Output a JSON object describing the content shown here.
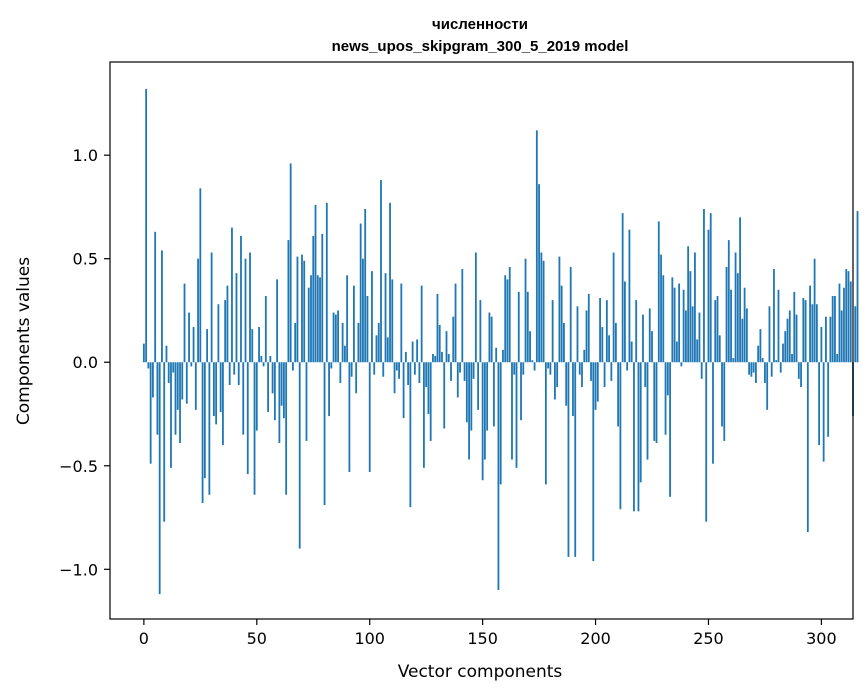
{
  "chart_data": {
    "type": "bar",
    "title_line1": "численности",
    "title_line2": "news_upos_skipgram_300_5_2019 model",
    "xlabel": "Vector components",
    "ylabel": "Components values",
    "xlim": [
      -15,
      314
    ],
    "ylim": [
      -1.24,
      1.45
    ],
    "xticks": [
      0,
      50,
      100,
      150,
      200,
      250,
      300
    ],
    "yticks": [
      -1.0,
      -0.5,
      0.0,
      0.5,
      1.0
    ],
    "xtick_labels": [
      "0",
      "50",
      "100",
      "150",
      "200",
      "250",
      "300"
    ],
    "ytick_labels": [
      "−1.0",
      "−0.5",
      "0.0",
      "0.5",
      "1.0"
    ],
    "bar_color": "#1f77b4",
    "grid": false,
    "values": [
      0.09,
      1.32,
      -0.03,
      -0.49,
      -0.17,
      0.63,
      -0.35,
      -1.12,
      0.54,
      -0.77,
      0.08,
      -0.1,
      -0.51,
      -0.05,
      -0.35,
      -0.23,
      -0.39,
      -0.18,
      0.38,
      -0.2,
      0.24,
      -0.02,
      0.17,
      -0.23,
      0.5,
      0.84,
      -0.68,
      -0.56,
      0.16,
      -0.64,
      0.53,
      -0.26,
      -0.3,
      0.28,
      -0.24,
      -0.4,
      0.3,
      0.37,
      -0.11,
      0.65,
      -0.06,
      0.43,
      -0.11,
      0.61,
      -0.35,
      0.5,
      -0.54,
      0.53,
      0.16,
      -0.64,
      -0.33,
      0.17,
      0.03,
      -0.02,
      0.32,
      -0.24,
      0.03,
      -0.15,
      -0.28,
      0.4,
      -0.39,
      -0.21,
      -0.27,
      -0.64,
      0.59,
      0.96,
      -0.04,
      0.19,
      0.51,
      -0.9,
      0.52,
      0.49,
      -0.38,
      0.36,
      0.42,
      0.61,
      0.76,
      0.42,
      0.41,
      0.62,
      -0.69,
      0.77,
      -0.26,
      -0.03,
      0.24,
      0.23,
      0.25,
      -0.1,
      0.19,
      0.08,
      0.42,
      -0.53,
      -0.07,
      0.37,
      -0.15,
      0.19,
      0.67,
      0.5,
      0.74,
      0.32,
      -0.53,
      0.44,
      -0.06,
      0.13,
      0.19,
      0.88,
      -0.07,
      0.43,
      0.12,
      0.77,
      0.4,
      -0.15,
      -0.04,
      -0.08,
      0.38,
      -0.27,
      0.05,
      -0.11,
      -0.7,
      0.1,
      -0.06,
      0.11,
      -0.1,
      0.37,
      -0.51,
      -0.12,
      -0.25,
      -0.38,
      0.04,
      0.03,
      0.33,
      0.18,
      0.05,
      -0.32,
      0.15,
      0.04,
      -0.09,
      0.22,
      0.38,
      -0.17,
      -0.05,
      0.45,
      -0.09,
      -0.29,
      -0.47,
      -0.33,
      -0.08,
      0.53,
      -0.23,
      0.3,
      -0.57,
      -0.47,
      -0.33,
      0.24,
      0.22,
      -0.31,
      0.07,
      -1.1,
      -0.59,
      0.06,
      0.42,
      0.4,
      0.46,
      -0.47,
      -0.06,
      -0.51,
      0.34,
      -0.28,
      -0.06,
      0.5,
      0.34,
      0.15,
      0.01,
      -0.04,
      1.12,
      0.86,
      0.53,
      0.49,
      -0.59,
      -0.03,
      -0.06,
      0.3,
      -0.18,
      -0.12,
      0.51,
      0.37,
      0.19,
      -0.21,
      -0.94,
      0.46,
      -0.26,
      -0.94,
      0.27,
      -0.06,
      -0.12,
      0.06,
      0.25,
      0.33,
      -0.09,
      -0.96,
      -0.23,
      -0.19,
      0.31,
      0.17,
      -0.12,
      0.3,
      0.13,
      -0.09,
      0.53,
      0.19,
      -0.31,
      -0.71,
      0.72,
      0.39,
      -0.04,
      0.64,
      0.1,
      -0.72,
      0.3,
      -0.72,
      -0.58,
      0.23,
      -0.12,
      -0.47,
      0.26,
      0.15,
      -0.38,
      -0.39,
      0.68,
      0.52,
      0.42,
      -0.35,
      -0.16,
      -0.65,
      0.41,
      0.36,
      0.1,
      0.38,
      -0.02,
      0.35,
      0.25,
      0.56,
      0.44,
      0.27,
      0.53,
      0.11,
      0.24,
      -0.08,
      0.74,
      -0.77,
      0.64,
      0.72,
      -0.49,
      0.3,
      0.32,
      0.13,
      -0.31,
      -0.38,
      0.46,
      0.59,
      0.35,
      0.02,
      0.53,
      0.43,
      0.7,
      0.21,
      0.36,
      0.26,
      -0.06,
      -0.07,
      -0.05,
      -0.1,
      0.08,
      0.16,
      0.02,
      -0.1,
      -0.23,
      0.27,
      -0.07,
      0.45,
      0.01,
      0.35,
      -0.05,
      0.09,
      0.15,
      0.21,
      0.25,
      0.04,
      0.34,
      0.23,
      -0.08,
      -0.12,
      0.31,
      0.3,
      -0.82,
      0.37,
      0.28,
      0.5,
      0.28,
      -0.4,
      0.17,
      -0.48,
      0.22,
      -0.36,
      0.22,
      0.32,
      0.32,
      0.04,
      0.38,
      0.25,
      0.36,
      0.45,
      0.44,
      0.39,
      -0.26,
      0.27,
      0.73
    ]
  }
}
